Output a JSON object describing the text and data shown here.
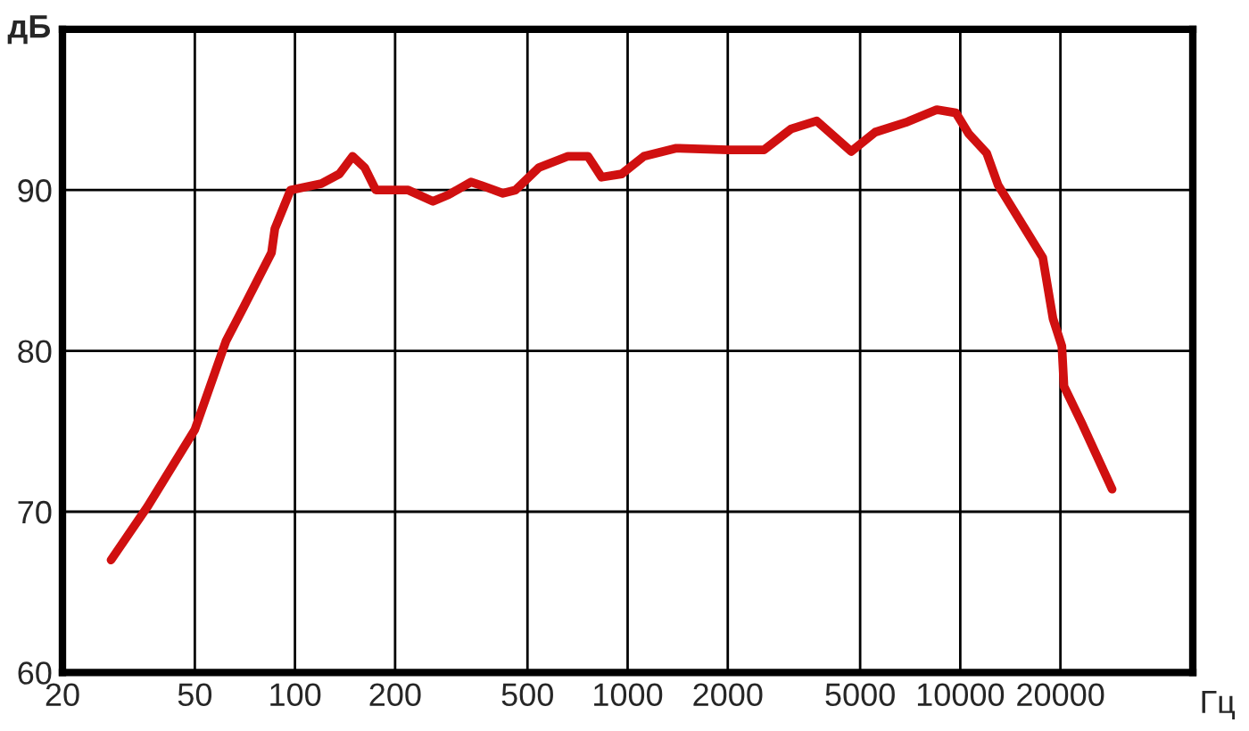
{
  "chart_data": {
    "type": "line",
    "xlabel": "Гц",
    "ylabel": "дБ",
    "log": "x",
    "grid": true,
    "marker": "none",
    "line_style": "solid",
    "xlim": [
      20,
      50000
    ],
    "xticks": [
      20,
      50,
      100,
      200,
      500,
      1000,
      2000,
      5000,
      10000,
      20000
    ],
    "ylim": [
      60,
      100
    ],
    "yticks": [
      60,
      70,
      80,
      90
    ],
    "series": [
      {
        "color": "#d01010",
        "x": [
          28,
          36,
          50,
          62,
          70,
          85,
          87,
          97,
          120,
          136,
          149,
          162,
          175,
          219,
          260,
          289,
          338,
          362,
          422,
          460,
          541,
          662,
          760,
          835,
          960,
          1120,
          1400,
          2000,
          2570,
          3100,
          3700,
          4700,
          5550,
          6850,
          8500,
          9700,
          10600,
          12000,
          13000,
          17700,
          19000,
          20200,
          20500,
          23200,
          28600
        ],
        "values": [
          67,
          70.3,
          75.1,
          80.6,
          82.7,
          86.1,
          87.6,
          90,
          90.4,
          91,
          92.1,
          91.4,
          90,
          90,
          89.3,
          89.7,
          90.5,
          90.3,
          89.8,
          90,
          91.4,
          92.1,
          92.1,
          90.8,
          91,
          92.1,
          92.6,
          92.5,
          92.5,
          93.8,
          94.3,
          92.4,
          93.6,
          94.2,
          95,
          94.8,
          93.5,
          92.3,
          90.3,
          85.8,
          82,
          80.3,
          77.8,
          75.5,
          71.4
        ]
      }
    ]
  }
}
